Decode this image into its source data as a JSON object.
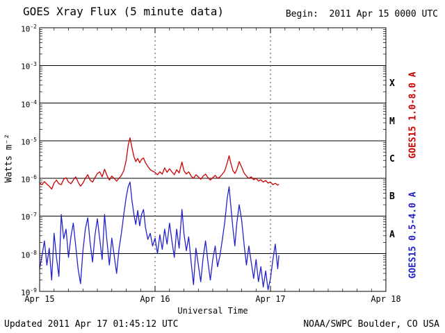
{
  "header": {
    "title": "GOES Xray Flux (5 minute data)",
    "begin_label": "Begin:  2011 Apr 15 0000 UTC"
  },
  "footer": {
    "updated": "Updated 2011 Apr 17 01:45:12 UTC",
    "source": "NOAA/SWPC Boulder, CO USA"
  },
  "colors": {
    "long_wave": "#cc0000",
    "short_wave": "#2222cc",
    "axis": "#000000",
    "day_divider": "#444444"
  },
  "chart_data": {
    "type": "line",
    "title": "GOES Xray Flux (5 minute data)",
    "xlabel": "Universal Time",
    "ylabel": "Watts m⁻²",
    "x_unit": "hours since 2011 Apr 15 0000 UTC",
    "xlim": [
      0,
      72
    ],
    "ylim_exponents": [
      -9,
      -2
    ],
    "grid": "solid horizontal lines at each decade, dashed vertical lines at day boundaries",
    "x_ticks": [
      {
        "t": 0,
        "label": "Apr 15"
      },
      {
        "t": 24,
        "label": "Apr 16"
      },
      {
        "t": 48,
        "label": "Apr 17"
      },
      {
        "t": 72,
        "label": "Apr 18"
      }
    ],
    "x_minor_step_hours": 3,
    "y_tick_exponents": [
      -2,
      -3,
      -4,
      -5,
      -6,
      -7,
      -8,
      -9
    ],
    "grid_exponents": [
      -3,
      -4,
      -5,
      -6,
      -7,
      -8
    ],
    "day_boundary_hours": [
      24,
      48
    ],
    "flux_classes": [
      {
        "label": "X",
        "center_exponent": -3.5
      },
      {
        "label": "M",
        "center_exponent": -4.5
      },
      {
        "label": "C",
        "center_exponent": -5.5
      },
      {
        "label": "B",
        "center_exponent": -6.5
      },
      {
        "label": "A",
        "center_exponent": -7.5
      }
    ],
    "series": [
      {
        "name": "GOES15 1.0-8.0 A",
        "color": "#cc0000",
        "points": [
          [
            0,
            7.5e-07
          ],
          [
            0.5,
            6.8e-07
          ],
          [
            1,
            8.2e-07
          ],
          [
            1.5,
            7e-07
          ],
          [
            2,
            6.2e-07
          ],
          [
            2.5,
            5.2e-07
          ],
          [
            3,
            7.5e-07
          ],
          [
            3.5,
            9e-07
          ],
          [
            4,
            7.2e-07
          ],
          [
            4.5,
            6.8e-07
          ],
          [
            5,
            9.5e-07
          ],
          [
            5.5,
            1.05e-06
          ],
          [
            6,
            8e-07
          ],
          [
            6.5,
            7.2e-07
          ],
          [
            7,
            9e-07
          ],
          [
            7.5,
            1.1e-06
          ],
          [
            8,
            8e-07
          ],
          [
            8.5,
            6.2e-07
          ],
          [
            9,
            7.5e-07
          ],
          [
            9.5,
            1e-06
          ],
          [
            10,
            1.25e-06
          ],
          [
            10.5,
            9e-07
          ],
          [
            11,
            8e-07
          ],
          [
            11.5,
            1.05e-06
          ],
          [
            12,
            1.35e-06
          ],
          [
            12.5,
            1.5e-06
          ],
          [
            13,
            1.1e-06
          ],
          [
            13.5,
            1.75e-06
          ],
          [
            14,
            1.2e-06
          ],
          [
            14.5,
            9e-07
          ],
          [
            15,
            1.15e-06
          ],
          [
            15.5,
            1e-06
          ],
          [
            16,
            8.5e-07
          ],
          [
            16.5,
            1e-06
          ],
          [
            17,
            1.2e-06
          ],
          [
            17.5,
            1.6e-06
          ],
          [
            18,
            3e-06
          ],
          [
            18.4,
            7.5e-06
          ],
          [
            18.8,
            1.2e-05
          ],
          [
            19.2,
            6.5e-06
          ],
          [
            19.6,
            3.8e-06
          ],
          [
            20,
            2.8e-06
          ],
          [
            20.4,
            3.4e-06
          ],
          [
            20.8,
            2.6e-06
          ],
          [
            21.2,
            3.2e-06
          ],
          [
            21.6,
            3.5e-06
          ],
          [
            22,
            2.6e-06
          ],
          [
            22.5,
            2.1e-06
          ],
          [
            23,
            1.7e-06
          ],
          [
            23.5,
            1.55e-06
          ],
          [
            24,
            1.45e-06
          ],
          [
            24.5,
            1.25e-06
          ],
          [
            25,
            1.5e-06
          ],
          [
            25.5,
            1.3e-06
          ],
          [
            26,
            1.9e-06
          ],
          [
            26.5,
            1.45e-06
          ],
          [
            27,
            1.8e-06
          ],
          [
            27.5,
            1.5e-06
          ],
          [
            28,
            1.25e-06
          ],
          [
            28.5,
            1.7e-06
          ],
          [
            29,
            1.4e-06
          ],
          [
            29.6,
            2.7e-06
          ],
          [
            30,
            1.6e-06
          ],
          [
            30.5,
            1.3e-06
          ],
          [
            31,
            1.5e-06
          ],
          [
            31.5,
            1.15e-06
          ],
          [
            32,
            1e-06
          ],
          [
            32.5,
            1.25e-06
          ],
          [
            33,
            1.1e-06
          ],
          [
            33.5,
            9.5e-07
          ],
          [
            34,
            1.15e-06
          ],
          [
            34.5,
            1.3e-06
          ],
          [
            35,
            1.05e-06
          ],
          [
            35.5,
            9e-07
          ],
          [
            36,
            1.05e-06
          ],
          [
            36.5,
            1.2e-06
          ],
          [
            37,
            1e-06
          ],
          [
            37.5,
            1.1e-06
          ],
          [
            38,
            1.3e-06
          ],
          [
            38.5,
            1.6e-06
          ],
          [
            39,
            2.6e-06
          ],
          [
            39.4,
            4e-06
          ],
          [
            39.8,
            2.4e-06
          ],
          [
            40.2,
            1.6e-06
          ],
          [
            40.6,
            1.35e-06
          ],
          [
            41,
            1.7e-06
          ],
          [
            41.5,
            2.8e-06
          ],
          [
            42,
            2e-06
          ],
          [
            42.5,
            1.4e-06
          ],
          [
            43,
            1.15e-06
          ],
          [
            43.5,
            1e-06
          ],
          [
            44,
            1.1e-06
          ],
          [
            44.5,
            9.2e-07
          ],
          [
            45,
            1e-06
          ],
          [
            45.5,
            8.5e-07
          ],
          [
            46,
            9.2e-07
          ],
          [
            46.5,
            8e-07
          ],
          [
            47,
            8.8e-07
          ],
          [
            47.5,
            7.5e-07
          ],
          [
            48,
            8e-07
          ],
          [
            48.5,
            6.8e-07
          ],
          [
            49,
            7.4e-07
          ],
          [
            49.5,
            6.6e-07
          ],
          [
            49.75,
            7e-07
          ]
        ]
      },
      {
        "name": "GOES15 0.5-4.0 A",
        "color": "#2222cc",
        "points": [
          [
            0,
            4e-09
          ],
          [
            0.5,
            9e-09
          ],
          [
            1,
            2.2e-08
          ],
          [
            1.5,
            5e-09
          ],
          [
            2,
            1.4e-08
          ],
          [
            2.5,
            2e-09
          ],
          [
            3,
            3.5e-08
          ],
          [
            3.5,
            8e-09
          ],
          [
            4,
            2.5e-09
          ],
          [
            4.5,
            1.1e-07
          ],
          [
            5,
            2.5e-08
          ],
          [
            5.5,
            4.5e-08
          ],
          [
            6,
            8e-09
          ],
          [
            6.5,
            2.8e-08
          ],
          [
            7,
            6.5e-08
          ],
          [
            7.5,
            1.6e-08
          ],
          [
            8,
            4e-09
          ],
          [
            8.5,
            1.6e-09
          ],
          [
            9,
            1.2e-08
          ],
          [
            9.5,
            4.5e-08
          ],
          [
            10,
            9e-08
          ],
          [
            10.5,
            2e-08
          ],
          [
            11,
            6e-09
          ],
          [
            11.5,
            3e-08
          ],
          [
            12,
            8.5e-08
          ],
          [
            12.5,
            2.4e-08
          ],
          [
            13,
            7e-09
          ],
          [
            13.5,
            1.1e-07
          ],
          [
            14,
            2.2e-08
          ],
          [
            14.5,
            5e-09
          ],
          [
            15,
            2.6e-08
          ],
          [
            15.5,
            9e-09
          ],
          [
            16,
            3e-09
          ],
          [
            16.5,
            1.3e-08
          ],
          [
            17,
            3.5e-08
          ],
          [
            17.5,
            1.1e-07
          ],
          [
            18,
            3.2e-07
          ],
          [
            18.4,
            6e-07
          ],
          [
            18.8,
            8e-07
          ],
          [
            19.2,
            2.6e-07
          ],
          [
            19.6,
            1.1e-07
          ],
          [
            20,
            6e-08
          ],
          [
            20.4,
            1.4e-07
          ],
          [
            20.8,
            5.5e-08
          ],
          [
            21.2,
            1.1e-07
          ],
          [
            21.6,
            1.5e-07
          ],
          [
            22,
            5e-08
          ],
          [
            22.5,
            2.4e-08
          ],
          [
            23,
            3.5e-08
          ],
          [
            23.5,
            1.6e-08
          ],
          [
            24,
            2.6e-08
          ],
          [
            24.5,
            1e-08
          ],
          [
            25,
            3.2e-08
          ],
          [
            25.5,
            1.3e-08
          ],
          [
            26,
            4.5e-08
          ],
          [
            26.5,
            1.8e-08
          ],
          [
            27,
            6.5e-08
          ],
          [
            27.5,
            2.2e-08
          ],
          [
            28,
            8e-09
          ],
          [
            28.5,
            4.5e-08
          ],
          [
            29,
            1.4e-08
          ],
          [
            29.6,
            1.5e-07
          ],
          [
            30,
            3.5e-08
          ],
          [
            30.5,
            1.2e-08
          ],
          [
            31,
            2.8e-08
          ],
          [
            31.5,
            6e-09
          ],
          [
            32,
            1.5e-09
          ],
          [
            32.5,
            1.4e-08
          ],
          [
            33,
            5e-09
          ],
          [
            33.5,
            1.8e-09
          ],
          [
            34,
            8e-09
          ],
          [
            34.5,
            2.2e-08
          ],
          [
            35,
            6e-09
          ],
          [
            35.5,
            2e-09
          ],
          [
            36,
            7e-09
          ],
          [
            36.5,
            1.6e-08
          ],
          [
            37,
            4.5e-09
          ],
          [
            37.5,
            9e-09
          ],
          [
            38,
            2.4e-08
          ],
          [
            38.5,
            7e-08
          ],
          [
            39,
            3e-07
          ],
          [
            39.4,
            6e-07
          ],
          [
            39.8,
            1.6e-07
          ],
          [
            40.2,
            4.5e-08
          ],
          [
            40.6,
            1.6e-08
          ],
          [
            41,
            6.5e-08
          ],
          [
            41.5,
            2e-07
          ],
          [
            42,
            8e-08
          ],
          [
            42.5,
            1.8e-08
          ],
          [
            43,
            5e-09
          ],
          [
            43.5,
            1.6e-08
          ],
          [
            44,
            6e-09
          ],
          [
            44.5,
            2.2e-09
          ],
          [
            45,
            7e-09
          ],
          [
            45.5,
            1.8e-09
          ],
          [
            46,
            4.5e-09
          ],
          [
            46.5,
            1.3e-09
          ],
          [
            47,
            3.5e-09
          ],
          [
            47.5,
            1.1e-09
          ],
          [
            48,
            2.2e-09
          ],
          [
            48.5,
            7e-09
          ],
          [
            49,
            1.8e-08
          ],
          [
            49.5,
            4e-09
          ],
          [
            49.75,
            9e-09
          ]
        ]
      }
    ]
  }
}
